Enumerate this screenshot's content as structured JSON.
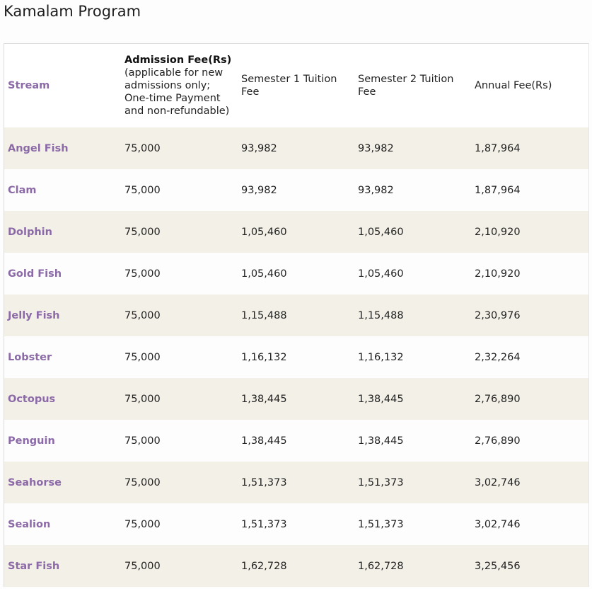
{
  "page": {
    "title": "Kamalam Program"
  },
  "table": {
    "headers": {
      "stream": "Stream",
      "admission_strong": "Admission Fee(Rs)",
      "admission_note": "(applicable for new admissions only; One-time Payment and non-refundable)",
      "sem1": "Semester 1 Tuition Fee",
      "sem2": "Semester 2 Tuition Fee",
      "annual": "Annual Fee(Rs)"
    },
    "rows": [
      {
        "stream": "Angel Fish",
        "admission": "75,000",
        "sem1": "93,982",
        "sem2": "93,982",
        "annual": " 1,87,964"
      },
      {
        "stream": "Clam",
        "admission": "75,000",
        "sem1": "93,982",
        "sem2": "93,982",
        "annual": "1,87,964"
      },
      {
        "stream": "Dolphin",
        "admission": "75,000",
        "sem1": "1,05,460",
        "sem2": "1,05,460",
        "annual": "2,10,920"
      },
      {
        "stream": "Gold Fish",
        "admission": "75,000",
        "sem1": "1,05,460",
        "sem2": "1,05,460",
        "annual": "2,10,920"
      },
      {
        "stream": "Jelly Fish",
        "admission": "75,000",
        "sem1": "1,15,488",
        "sem2": "1,15,488",
        "annual": "2,30,976"
      },
      {
        "stream": "Lobster",
        "admission": "75,000",
        "sem1": "1,16,132",
        "sem2": "1,16,132",
        "annual": "2,32,264"
      },
      {
        "stream": "Octopus",
        "admission": "75,000",
        "sem1": "1,38,445",
        "sem2": "1,38,445",
        "annual": "2,76,890"
      },
      {
        "stream": "Penguin",
        "admission": "75,000",
        "sem1": "1,38,445",
        "sem2": "1,38,445",
        "annual": "2,76,890"
      },
      {
        "stream": "Seahorse",
        "admission": "75,000",
        "sem1": "1,51,373",
        "sem2": "1,51,373",
        "annual": "3,02,746"
      },
      {
        "stream": "Sealion",
        "admission": "75,000",
        "sem1": "1,51,373",
        "sem2": "1,51,373",
        "annual": "3,02,746"
      },
      {
        "stream": "Star Fish",
        "admission": "75,000",
        "sem1": "1,62,728",
        "sem2": "1,62,728",
        "annual": "3,25,456"
      }
    ]
  },
  "colors": {
    "stream_text": "#8c6aa8",
    "stripe": "#f3f1e7"
  }
}
